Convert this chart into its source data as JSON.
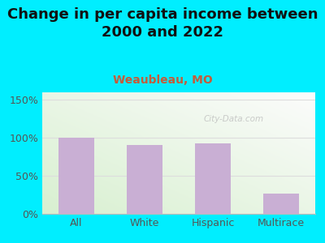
{
  "title": "Change in per capita income between\n2000 and 2022",
  "subtitle": "Weaubleau, MO",
  "categories": [
    "All",
    "White",
    "Hispanic",
    "Multirace"
  ],
  "values": [
    100,
    91,
    93,
    27
  ],
  "bar_color": "#c9afd4",
  "title_fontsize": 13,
  "subtitle_fontsize": 10,
  "subtitle_color": "#c45c3a",
  "tick_label_color": "#555555",
  "bg_outer": "#00eeff",
  "ylim": [
    0,
    160
  ],
  "yticks": [
    0,
    50,
    100,
    150
  ],
  "ytick_labels": [
    "0%",
    "50%",
    "100%",
    "150%"
  ],
  "watermark": "City-Data.com",
  "watermark_color": "#bbbbbb",
  "hline_color": "#dddddd"
}
